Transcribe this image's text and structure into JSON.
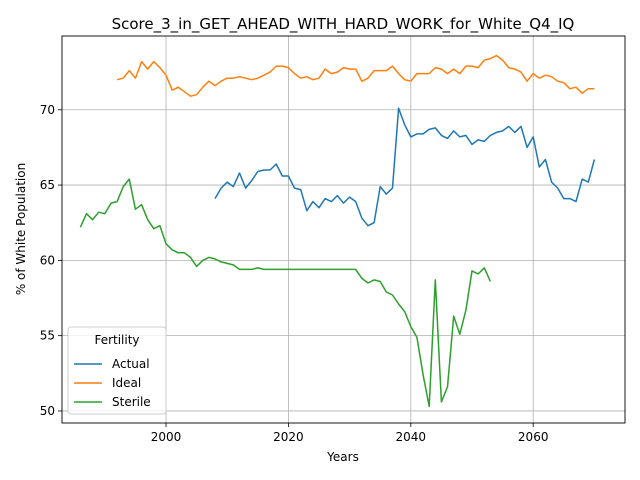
{
  "chart_data": {
    "type": "line",
    "title": "Score_3_in_GET_AHEAD_WITH_HARD_WORK_for_White_Q4_IQ",
    "xlabel": "Years",
    "ylabel": "% of White Population",
    "xlim": [
      1983,
      2075
    ],
    "ylim": [
      49.2,
      74.9
    ],
    "xticks": [
      2000,
      2020,
      2040,
      2060
    ],
    "yticks": [
      50,
      55,
      60,
      65,
      70
    ],
    "grid": true,
    "legend": {
      "title": "Fertility",
      "placement": "lower-left"
    },
    "series": [
      {
        "name": "Actual",
        "color": "#1f77b4",
        "x": [
          2008,
          2009,
          2010,
          2011,
          2012,
          2013,
          2014,
          2015,
          2016,
          2017,
          2018,
          2019,
          2020,
          2021,
          2022,
          2023,
          2024,
          2025,
          2026,
          2027,
          2028,
          2029,
          2030,
          2031,
          2032,
          2033,
          2034,
          2035,
          2036,
          2037,
          2038,
          2039,
          2040,
          2041,
          2042,
          2043,
          2044,
          2045,
          2046,
          2047,
          2048,
          2049,
          2050,
          2051,
          2052,
          2053,
          2054,
          2055,
          2056,
          2057,
          2058,
          2059,
          2060,
          2061,
          2062,
          2063,
          2064,
          2065,
          2066,
          2067,
          2068,
          2069,
          2070
        ],
        "y": [
          64.1,
          64.8,
          65.2,
          64.9,
          65.8,
          64.8,
          65.3,
          65.9,
          66.0,
          66.0,
          66.4,
          65.6,
          65.6,
          64.8,
          64.7,
          63.3,
          63.9,
          63.5,
          64.1,
          63.9,
          64.3,
          63.8,
          64.2,
          63.9,
          62.8,
          62.3,
          62.5,
          64.9,
          64.4,
          64.8,
          70.1,
          69.0,
          68.2,
          68.4,
          68.4,
          68.7,
          68.8,
          68.3,
          68.1,
          68.6,
          68.2,
          68.3,
          67.7,
          68.0,
          67.9,
          68.3,
          68.5,
          68.6,
          68.9,
          68.5,
          68.9,
          67.5,
          68.2,
          66.2,
          66.7,
          65.2,
          64.8,
          64.1,
          64.1,
          63.9,
          65.4,
          65.2,
          66.7
        ]
      },
      {
        "name": "Ideal",
        "color": "#ff7f0e",
        "x": [
          1992,
          1993,
          1994,
          1995,
          1996,
          1997,
          1998,
          1999,
          2000,
          2001,
          2002,
          2003,
          2004,
          2005,
          2006,
          2007,
          2008,
          2009,
          2010,
          2011,
          2012,
          2013,
          2014,
          2015,
          2016,
          2017,
          2018,
          2019,
          2020,
          2021,
          2022,
          2023,
          2024,
          2025,
          2026,
          2027,
          2028,
          2029,
          2030,
          2031,
          2032,
          2033,
          2034,
          2035,
          2036,
          2037,
          2038,
          2039,
          2040,
          2041,
          2042,
          2043,
          2044,
          2045,
          2046,
          2047,
          2048,
          2049,
          2050,
          2051,
          2052,
          2053,
          2054,
          2055,
          2056,
          2057,
          2058,
          2059,
          2060,
          2061,
          2062,
          2063,
          2064,
          2065,
          2066,
          2067,
          2068,
          2069,
          2070
        ],
        "y": [
          72.0,
          72.1,
          72.6,
          72.1,
          73.2,
          72.7,
          73.2,
          72.8,
          72.3,
          71.3,
          71.5,
          71.2,
          70.9,
          71.0,
          71.5,
          71.9,
          71.6,
          71.9,
          72.1,
          72.1,
          72.2,
          72.1,
          72.0,
          72.1,
          72.3,
          72.5,
          72.9,
          72.9,
          72.8,
          72.4,
          72.1,
          72.2,
          72.0,
          72.1,
          72.7,
          72.4,
          72.5,
          72.8,
          72.7,
          72.7,
          71.9,
          72.1,
          72.6,
          72.6,
          72.6,
          72.9,
          72.4,
          72.0,
          71.9,
          72.4,
          72.4,
          72.4,
          72.8,
          72.7,
          72.4,
          72.7,
          72.4,
          72.9,
          72.9,
          72.8,
          73.3,
          73.4,
          73.6,
          73.3,
          72.8,
          72.7,
          72.5,
          71.9,
          72.4,
          72.1,
          72.3,
          72.2,
          71.9,
          71.8,
          71.4,
          71.5,
          71.1,
          71.4,
          71.4
        ]
      },
      {
        "name": "Sterile",
        "color": "#2ca02c",
        "x": [
          1986,
          1987,
          1988,
          1989,
          1990,
          1991,
          1992,
          1993,
          1994,
          1995,
          1996,
          1997,
          1998,
          1999,
          2000,
          2001,
          2002,
          2003,
          2004,
          2005,
          2006,
          2007,
          2008,
          2009,
          2010,
          2011,
          2012,
          2013,
          2014,
          2015,
          2016,
          2017,
          2018,
          2019,
          2020,
          2021,
          2022,
          2023,
          2024,
          2025,
          2026,
          2027,
          2028,
          2029,
          2030,
          2031,
          2032,
          2033,
          2034,
          2035,
          2036,
          2037,
          2038,
          2039,
          2040,
          2041,
          2042,
          2043,
          2044,
          2045,
          2046,
          2047,
          2048,
          2049,
          2050,
          2051,
          2052,
          2053
        ],
        "y": [
          62.2,
          63.1,
          62.7,
          63.2,
          63.1,
          63.8,
          63.9,
          64.9,
          65.4,
          63.4,
          63.7,
          62.7,
          62.1,
          62.3,
          61.1,
          60.7,
          60.5,
          60.5,
          60.2,
          59.6,
          60.0,
          60.2,
          60.1,
          59.9,
          59.8,
          59.7,
          59.4,
          59.4,
          59.4,
          59.5,
          59.4,
          59.4,
          59.4,
          59.4,
          59.4,
          59.4,
          59.4,
          59.4,
          59.4,
          59.4,
          59.4,
          59.4,
          59.4,
          59.4,
          59.4,
          59.4,
          58.8,
          58.5,
          58.7,
          58.6,
          57.9,
          57.7,
          57.1,
          56.6,
          55.6,
          54.9,
          52.4,
          50.3,
          58.7,
          50.6,
          51.6,
          56.3,
          55.1,
          56.7,
          59.3,
          59.1,
          59.5,
          58.6
        ]
      }
    ]
  }
}
